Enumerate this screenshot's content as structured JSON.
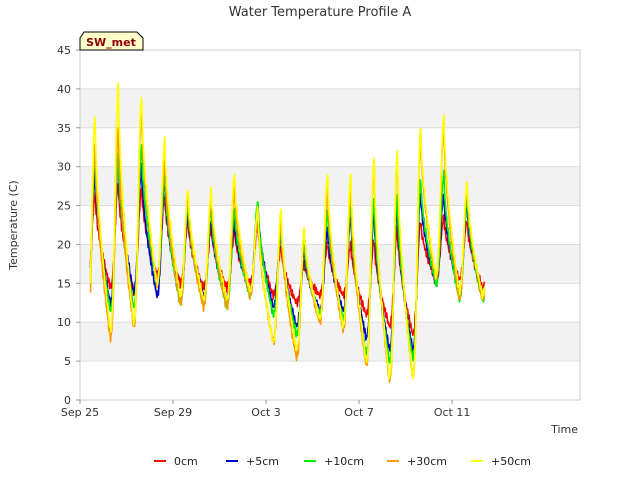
{
  "chart_data": {
    "type": "line",
    "title": "Water Temperature Profile A",
    "xlabel": "Time",
    "ylabel": "Temperature (C)",
    "ylim": [
      0,
      45
    ],
    "yticks": [
      0,
      5,
      10,
      15,
      20,
      25,
      30,
      35,
      40,
      45
    ],
    "xlim_days": [
      0,
      21.5
    ],
    "xticks": [
      {
        "label": "Sep 25",
        "day": 0
      },
      {
        "label": "Sep 29",
        "day": 4
      },
      {
        "label": "Oct 3",
        "day": 8
      },
      {
        "label": "Oct 7",
        "day": 12
      },
      {
        "label": "Oct 11",
        "day": 16
      }
    ],
    "badge": "SW_met",
    "legend_position": "bottom-center",
    "background_bands": true,
    "daily": {
      "days": [
        "Sep 25",
        "Sep 26",
        "Sep 27",
        "Sep 28",
        "Sep 29",
        "Sep 30",
        "Oct 1",
        "Oct 2",
        "Oct 3",
        "Oct 4",
        "Oct 5",
        "Oct 6",
        "Oct 7",
        "Oct 8",
        "Oct 9",
        "Oct 10",
        "Oct 11",
        "Oct 12"
      ],
      "series": [
        {
          "name": "0cm",
          "color": "#ff0000",
          "max": [
            26.5,
            27.8,
            27.2,
            26.0,
            22.8,
            22.0,
            21.5,
            22.5,
            19.5,
            17.5,
            20.0,
            20.0,
            20.5,
            22.0,
            23.0,
            23.5,
            23.0,
            20.5
          ],
          "min": [
            14.0,
            14.5,
            14.0,
            16.0,
            15.0,
            14.5,
            14.5,
            15.0,
            13.5,
            12.5,
            13.5,
            13.5,
            11.0,
            9.5,
            8.5,
            15.5,
            15.5,
            14.5
          ]
        },
        {
          "name": "+5cm",
          "color": "#0000cc",
          "max": [
            29.0,
            30.5,
            30.0,
            28.0,
            24.0,
            23.0,
            23.0,
            25.0,
            21.5,
            19.0,
            22.0,
            23.5,
            24.0,
            24.5,
            26.5,
            26.5,
            25.0,
            21.5
          ],
          "min": [
            12.5,
            12.5,
            14.0,
            13.5,
            13.0,
            13.5,
            13.0,
            14.0,
            12.0,
            9.5,
            11.5,
            11.5,
            8.0,
            6.5,
            6.5,
            15.0,
            14.0,
            13.5
          ]
        },
        {
          "name": "+10cm",
          "color": "#00ee00",
          "max": [
            31.0,
            31.5,
            32.5,
            29.0,
            25.0,
            24.5,
            24.5,
            25.5,
            22.0,
            20.0,
            24.5,
            25.0,
            26.0,
            26.0,
            28.5,
            29.0,
            26.0,
            22.5
          ],
          "min": [
            10.0,
            11.5,
            12.0,
            15.0,
            12.5,
            12.5,
            12.0,
            13.5,
            11.0,
            8.5,
            11.0,
            10.5,
            6.0,
            5.0,
            5.5,
            15.0,
            13.0,
            13.0
          ]
        },
        {
          "name": "+30cm",
          "color": "#ff9900",
          "max": [
            33.0,
            35.0,
            37.0,
            31.0,
            26.0,
            26.0,
            27.0,
            24.0,
            23.0,
            21.5,
            27.0,
            27.0,
            30.5,
            31.0,
            34.0,
            35.0,
            27.5,
            24.5
          ],
          "min": [
            7.0,
            8.0,
            9.5,
            15.0,
            12.5,
            12.0,
            12.0,
            13.5,
            7.5,
            5.5,
            10.0,
            9.0,
            4.5,
            2.5,
            3.0,
            15.5,
            13.0,
            13.0
          ]
        },
        {
          "name": "+50cm",
          "color": "#ffff00",
          "max": [
            36.5,
            40.5,
            39.0,
            33.5,
            27.0,
            27.0,
            29.0,
            24.5,
            24.5,
            22.0,
            29.0,
            29.0,
            31.0,
            32.0,
            35.0,
            36.5,
            28.0,
            25.0
          ],
          "min": [
            7.5,
            9.0,
            10.0,
            15.0,
            13.5,
            13.0,
            13.0,
            14.0,
            7.5,
            6.5,
            10.5,
            9.5,
            5.0,
            3.0,
            3.0,
            16.0,
            14.0,
            13.5
          ]
        }
      ]
    }
  }
}
